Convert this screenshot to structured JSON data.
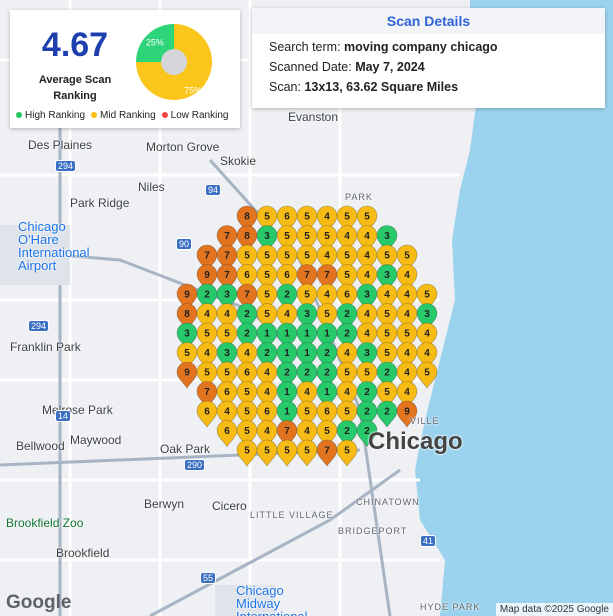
{
  "rank_panel": {
    "score": "4.67",
    "score_label": "Average Scan Ranking",
    "donut": {
      "values": [
        25,
        75
      ],
      "value_labels": [
        "25%",
        "75%"
      ],
      "colors": [
        "#2ed47a",
        "#fbc61c"
      ]
    },
    "legend": [
      {
        "name": "High Ranking",
        "color": "#22c55e"
      },
      {
        "name": "Mid Ranking",
        "color": "#f9bd16"
      },
      {
        "name": "Low Ranking",
        "color": "#ef4444"
      }
    ]
  },
  "details": {
    "title": "Scan Details",
    "rows": [
      {
        "label": "Search term:",
        "value": "moving company chicago"
      },
      {
        "label": "Scanned Date:",
        "value": "May 7, 2024"
      },
      {
        "label": "Scan:",
        "value": "13x13, 63.62 Square Miles"
      }
    ]
  },
  "map": {
    "labels": [
      "Des Plaines",
      "Morton Grove",
      "Skokie",
      "Evanston",
      "Niles",
      "Park Ridge",
      "Chicago O'Hare International Airport",
      "Franklin Park",
      "Melrose Park",
      "Bellwood",
      "Maywood",
      "Oak Park",
      "Berwyn",
      "Cicero",
      "LITTLE VILLAGE",
      "CHINATOWN",
      "BRIDGEPORT",
      "Brookfield Zoo",
      "Brookfield",
      "Chicago Midway International Airport",
      "HYDE PARK",
      "PARK",
      "VILLE",
      "Chicago"
    ],
    "shields": [
      "294",
      "94",
      "90",
      "290",
      "55",
      "294",
      "41",
      "14"
    ],
    "logo": "Google",
    "attribution": "Map data ©2025 Google",
    "pin_colors": [
      "#27c96a",
      "#f6bb14",
      "#e27420"
    ]
  },
  "grid": {
    "rows": [
      [
        null,
        null,
        null,
        8,
        5,
        6,
        5,
        4,
        5,
        5,
        null,
        null,
        null
      ],
      [
        null,
        null,
        7,
        8,
        3,
        5,
        5,
        5,
        4,
        4,
        3,
        null,
        null
      ],
      [
        null,
        7,
        7,
        5,
        5,
        5,
        5,
        4,
        5,
        4,
        5,
        5,
        null
      ],
      [
        null,
        9,
        7,
        6,
        5,
        6,
        7,
        7,
        5,
        4,
        3,
        4,
        null
      ],
      [
        9,
        2,
        3,
        7,
        5,
        2,
        5,
        4,
        6,
        3,
        4,
        4,
        5
      ],
      [
        8,
        4,
        4,
        2,
        5,
        4,
        3,
        5,
        2,
        4,
        5,
        4,
        3
      ],
      [
        3,
        5,
        5,
        2,
        1,
        1,
        1,
        1,
        2,
        4,
        5,
        5,
        4
      ],
      [
        5,
        4,
        3,
        4,
        2,
        1,
        1,
        2,
        4,
        3,
        5,
        4,
        4
      ],
      [
        9,
        5,
        5,
        6,
        4,
        2,
        2,
        2,
        5,
        5,
        2,
        4,
        5
      ],
      [
        null,
        7,
        6,
        5,
        4,
        1,
        4,
        1,
        4,
        2,
        5,
        4,
        null
      ],
      [
        null,
        6,
        4,
        5,
        6,
        1,
        5,
        6,
        5,
        2,
        2,
        9,
        null
      ],
      [
        null,
        null,
        6,
        5,
        4,
        7,
        4,
        5,
        2,
        2,
        null,
        null,
        null
      ],
      [
        null,
        null,
        null,
        5,
        5,
        5,
        5,
        7,
        5,
        null,
        null,
        null,
        null
      ]
    ]
  }
}
